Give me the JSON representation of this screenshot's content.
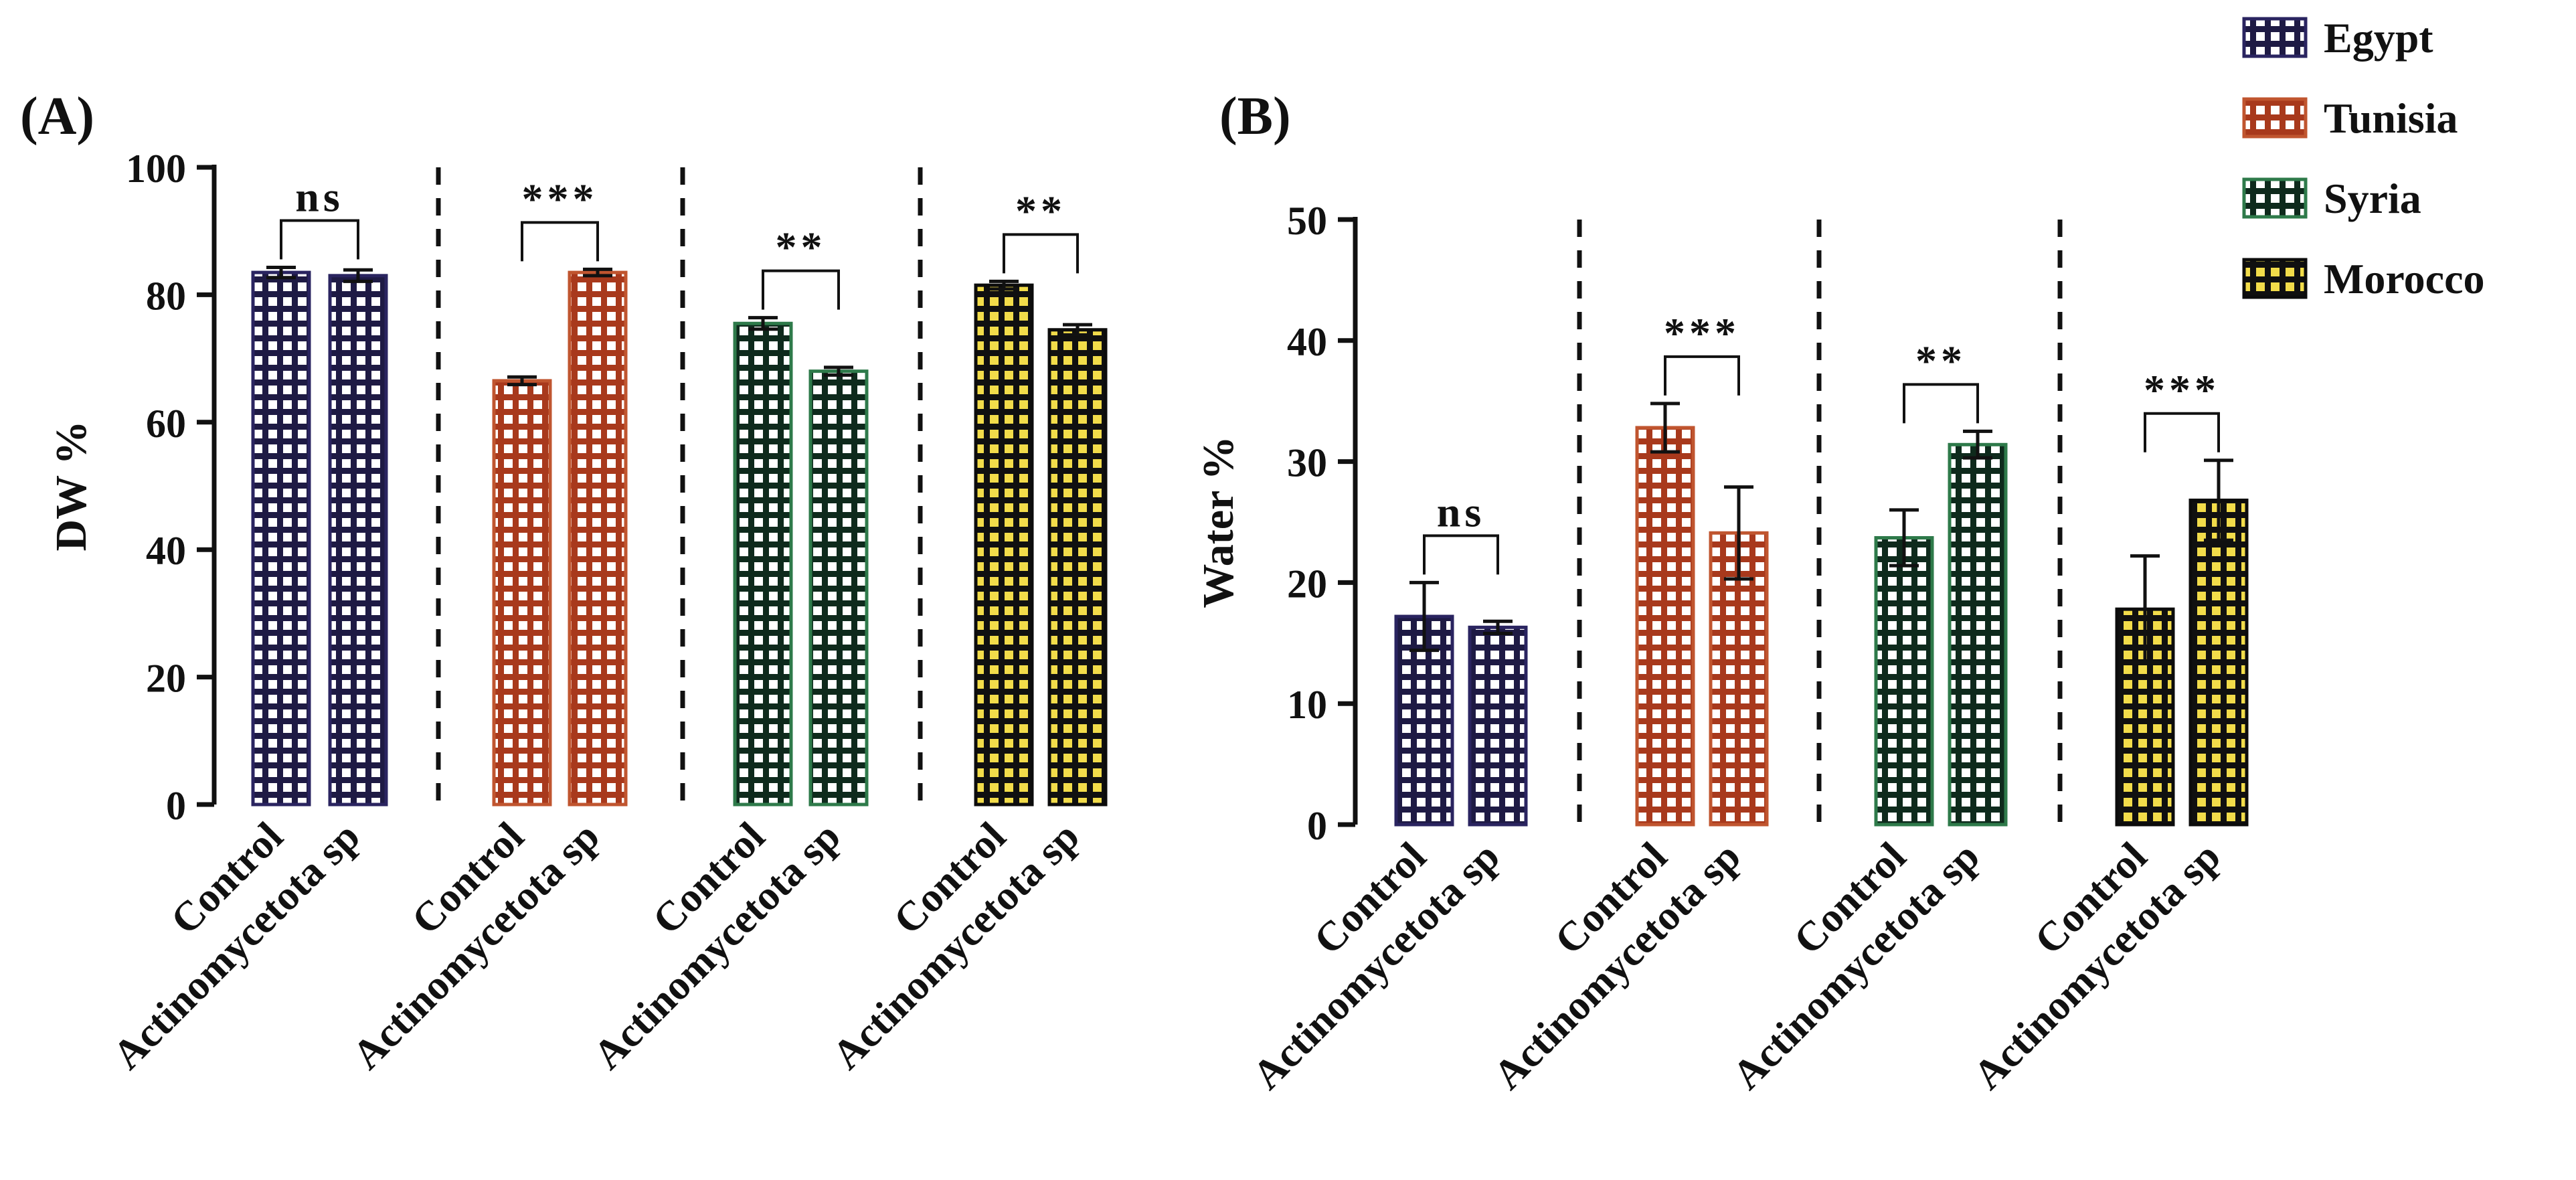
{
  "colors": {
    "egypt": "#1e1a44",
    "tunisia": "#a8391c",
    "syria": "#0e2a1c",
    "morocco": "#f2dc4a",
    "egypt_edge": "#2a2460",
    "tunisia_edge": "#c0552f",
    "syria_edge": "#2e7a4a",
    "morocco_edge": "#0c0c0c",
    "square_light": "#ffffff",
    "square_dark": "#101010"
  },
  "chart_data": [
    {
      "id": "A",
      "type": "bar",
      "panel_label": "(A)",
      "title": "",
      "xlabel": "",
      "ylabel": "DW %",
      "ylim": [
        0,
        100
      ],
      "yticks": [
        0,
        20,
        40,
        60,
        80,
        100
      ],
      "categories": [
        "Control",
        "Actinomycetota sp"
      ],
      "groups": [
        {
          "name": "Egypt",
          "color_key": "egypt",
          "values": [
            83.5,
            83.0
          ],
          "errors": [
            0.8,
            0.9
          ],
          "significance": "ns"
        },
        {
          "name": "Tunisia",
          "color_key": "tunisia",
          "values": [
            66.5,
            83.5
          ],
          "errors": [
            0.6,
            0.5
          ],
          "significance": "***"
        },
        {
          "name": "Syria",
          "color_key": "syria",
          "values": [
            75.5,
            68.0
          ],
          "errors": [
            0.9,
            0.6
          ],
          "significance": "**"
        },
        {
          "name": "Morocco",
          "color_key": "morocco",
          "values": [
            81.5,
            74.5
          ],
          "errors": [
            0.6,
            0.8
          ],
          "significance": "**"
        }
      ],
      "error_bars": true
    },
    {
      "id": "B",
      "type": "bar",
      "panel_label": "(B)",
      "title": "",
      "xlabel": "",
      "ylabel": "Water %",
      "ylim": [
        0,
        50
      ],
      "yticks": [
        0,
        10,
        20,
        30,
        40,
        50
      ],
      "categories": [
        "Control",
        "Actinomycetota sp"
      ],
      "groups": [
        {
          "name": "Egypt",
          "color_key": "egypt",
          "values": [
            17.2,
            16.3
          ],
          "errors": [
            2.8,
            0.5
          ],
          "significance": "ns"
        },
        {
          "name": "Tunisia",
          "color_key": "tunisia",
          "values": [
            32.8,
            24.1
          ],
          "errors": [
            2.0,
            3.8
          ],
          "significance": "***"
        },
        {
          "name": "Syria",
          "color_key": "syria",
          "values": [
            23.7,
            31.4
          ],
          "errors": [
            2.3,
            1.1
          ],
          "significance": "**"
        },
        {
          "name": "Morocco",
          "color_key": "morocco",
          "values": [
            17.8,
            26.8
          ],
          "errors": [
            4.4,
            3.3
          ],
          "significance": "***"
        }
      ],
      "error_bars": true
    }
  ],
  "legend": {
    "placement": "top-right",
    "entries": [
      {
        "label": "Egypt",
        "color_key": "egypt"
      },
      {
        "label": "Tunisia",
        "color_key": "tunisia"
      },
      {
        "label": "Syria",
        "color_key": "syria"
      },
      {
        "label": "Morocco",
        "color_key": "morocco"
      }
    ]
  }
}
